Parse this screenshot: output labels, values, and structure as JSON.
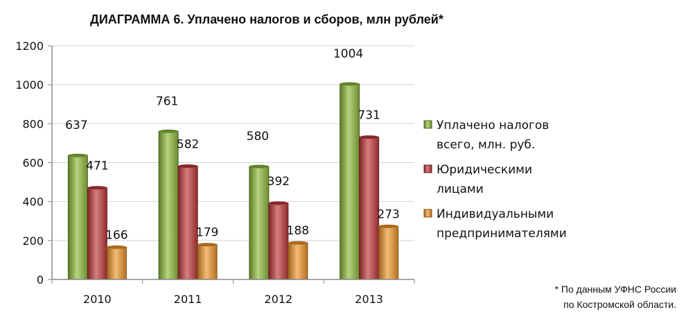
{
  "chart_data": {
    "type": "bar",
    "title": "ДИАГРАММА 6. Уплачено налогов и сборов, млн рублей*",
    "categories": [
      "2010",
      "2011",
      "2012",
      "2013"
    ],
    "series": [
      {
        "name": "Уплачено налогов всего, млн. руб.",
        "legend_lines": [
          "Уплачено налогов",
          "всего, млн. руб."
        ],
        "color": "#8fbc3c",
        "values": [
          637,
          761,
          580,
          1004
        ]
      },
      {
        "name": "Юридическими лицами",
        "legend_lines": [
          "Юридическими",
          "лицами"
        ],
        "color": "#c0393b",
        "values": [
          471,
          582,
          392,
          731
        ]
      },
      {
        "name": "Индивидуальными предпринимателями",
        "legend_lines": [
          "Индивидуальными",
          "предпринимателями"
        ],
        "color": "#f0962a",
        "values": [
          166,
          179,
          188,
          273
        ]
      }
    ],
    "ylim": [
      0,
      1200
    ],
    "yticks": [
      "0",
      "200",
      "400",
      "600",
      "800",
      "1000",
      "1200"
    ],
    "grid": true,
    "legend_position": "right"
  },
  "footnote": {
    "line1": "* По данным УФНС России",
    "line2": "по Костромской области."
  }
}
